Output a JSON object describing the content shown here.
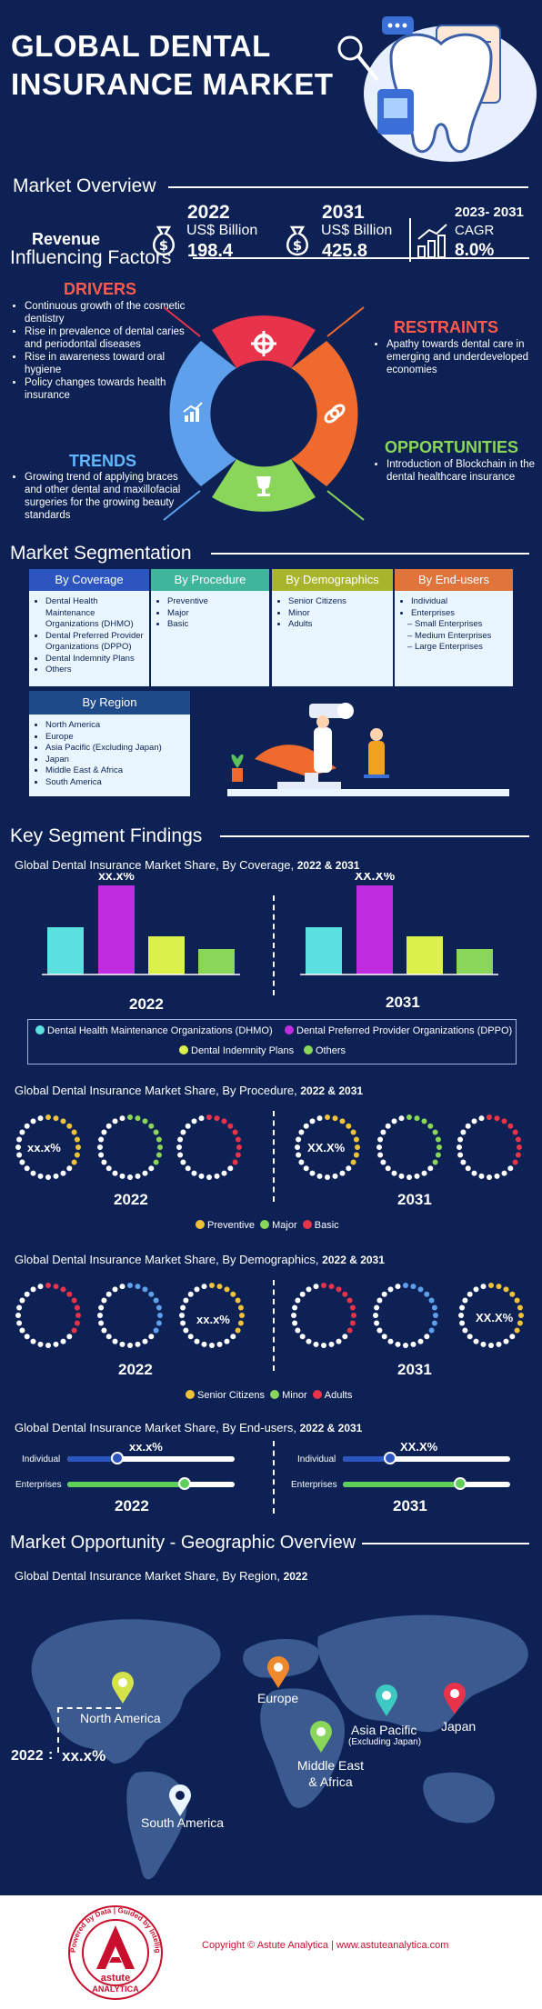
{
  "header": {
    "title_line1": "GLOBAL DENTAL",
    "title_line2": "INSURANCE MARKET"
  },
  "overview": {
    "title": "Market Overview",
    "revenue_label": "Revenue",
    "y2022": {
      "year": "2022",
      "unit": "US$ Billion",
      "value": "198.4"
    },
    "y2031": {
      "year": "2031",
      "unit": "US$ Billion",
      "value": "425.8"
    },
    "cagr": {
      "period": "2023- 2031",
      "label": "CAGR",
      "value": "8.0%"
    }
  },
  "factors": {
    "title": "Influencing Factors",
    "drivers": {
      "title": "DRIVERS",
      "items": [
        "Continuous growth of the cosmetic dentistry",
        "Rise in prevalence of dental caries and periodontal diseases",
        "Rise in awareness toward oral hygiene",
        "Policy changes towards health insurance"
      ]
    },
    "trends": {
      "title": "TRENDS",
      "items": [
        "Growing trend of applying braces and other dental and maxillofacial surgeries for the growing beauty standards"
      ]
    },
    "restraints": {
      "title": "RESTRAINTS",
      "items": [
        "Apathy towards dental care in emerging and underdeveloped economies"
      ]
    },
    "opportunities": {
      "title": "OPPORTUNITIES",
      "items": [
        "Introduction of Blockchain in the dental healthcare insurance"
      ]
    }
  },
  "segmentation": {
    "title": "Market Segmentation",
    "coverage": {
      "title": "By Coverage",
      "items": [
        "Dental Health Maintenance Organizations (DHMO)",
        "Dental Preferred Provider Organizations (DPPO)",
        "Dental Indemnity Plans",
        "Others"
      ]
    },
    "procedure": {
      "title": "By Procedure",
      "items": [
        "Preventive",
        "Major",
        "Basic"
      ]
    },
    "demographics": {
      "title": "By Demographics",
      "items": [
        "Senior Citizens",
        "Minor",
        "Adults"
      ]
    },
    "endusers": {
      "title": "By End-users",
      "items": [
        "Individual",
        "Enterprises"
      ],
      "sub": [
        "Small Enterprises",
        "Medium Enterprises",
        "Large Enterprises"
      ]
    },
    "region": {
      "title": "By Region",
      "items": [
        "North America",
        "Europe",
        "Asia Pacific (Excluding Japan)",
        "Japan",
        "Middle East &  Africa",
        "South America"
      ]
    }
  },
  "findings": {
    "title": "Key Segment Findings",
    "coverage": {
      "title": "Global Dental Insurance Market Share, By Coverage,",
      "years": "2022 & 2031",
      "label_2022": "xx.x%",
      "label_2031": "XX.X%",
      "legend": [
        "Dental Health Maintenance Organizations (DHMO)",
        "Dental Preferred Provider Organizations (DPPO)",
        "Dental Indemnity Plans",
        "Others"
      ]
    },
    "procedure": {
      "title": "Global Dental Insurance Market Share, By Procedure,",
      "years": "2022 & 2031",
      "label_2022": "xx.x%",
      "label_2031": "XX.X%",
      "legend": [
        "Preventive",
        "Major",
        "Basic"
      ]
    },
    "demographics": {
      "title": "Global Dental Insurance Market Share, By Demographics,",
      "years": "2022 & 2031",
      "label_2022": "xx.x%",
      "label_2031": "XX.X%",
      "legend": [
        "Senior Citizens",
        "Minor",
        "Adults"
      ]
    },
    "endusers": {
      "title": "Global Dental Insurance Market Share, By End-users,",
      "years": "2022 & 2031",
      "label_2022": "xx.x%",
      "label_2031": "XX.X%",
      "rows": [
        "Individual",
        "Enterprises"
      ]
    },
    "year_a": "2022",
    "year_b": "2031"
  },
  "chart_data": [
    {
      "type": "bar",
      "title": "Global Dental Insurance Market Share, By Coverage, 2022 & 2031",
      "categories": [
        "2022",
        "2031"
      ],
      "series": [
        {
          "name": "Dental Health Maintenance Organizations (DHMO)",
          "values": [
            null,
            null
          ]
        },
        {
          "name": "Dental Preferred Provider Organizations (DPPO)",
          "values": [
            null,
            null
          ]
        },
        {
          "name": "Dental Indemnity Plans",
          "values": [
            null,
            null
          ]
        },
        {
          "name": "Others",
          "values": [
            null,
            null
          ]
        }
      ],
      "data_labels": [
        "xx.x%",
        "XX.X%"
      ],
      "grid": false,
      "legend": "bottom"
    }
  ],
  "geo": {
    "title": "Market Opportunity - Geographic Overview",
    "subtitle": "Global Dental Insurance Market Share, By Region,",
    "subtitle_year": "2022",
    "regions": {
      "na": "North America",
      "eu": "Europe",
      "ap": "Asia Pacific",
      "ap_sub": "(Excluding Japan)",
      "jp": "Japan",
      "mea": "Middle East & Africa",
      "sa": "South America"
    },
    "value_year": "2022",
    "value": "xx.x%"
  },
  "footer": {
    "copyright": "Copyright © Astute Analytica  |  www.astuteanalytica.com",
    "logo_text": "astute",
    "logo_sub": "ANALYTICA",
    "logo_ring": "Powered by Data | Guided by Intelligence"
  },
  "colors": {
    "bg": "#0d2155",
    "cyan": "#5de0e0",
    "purple": "#c02de0",
    "lime": "#dcf04a",
    "green": "#8ad65a",
    "red": "#e8334a",
    "orange": "#ef6a2c",
    "blue": "#5ea0ec"
  },
  "icons": [
    "tooth-illustration",
    "money-bag-icon",
    "growth-chart-icon",
    "gear-icon",
    "handshake-icon",
    "trophy-icon",
    "chart-icon",
    "dentist-illustration",
    "map-pin-icon",
    "astute-logo"
  ]
}
